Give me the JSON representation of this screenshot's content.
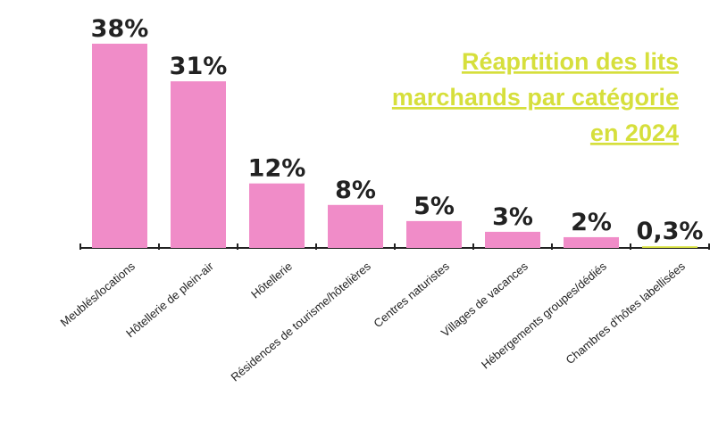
{
  "chart_data": {
    "type": "bar",
    "title": [
      "Réaprtition des lits",
      "marchands par catégorie",
      "en 2024"
    ],
    "categories": [
      "Meublés/locations",
      "Hôtellerie de plein-air",
      "Hôtellerie",
      "Résidences de tourisme/hôtelières",
      "Centres naturistes",
      "Villages de vacances",
      "Hébergements groupes/dédiés",
      "Chambres d'hôtes labellisées"
    ],
    "values": [
      38,
      31,
      12,
      8,
      5,
      3,
      2,
      0.3
    ],
    "value_labels": [
      "38%",
      "31%",
      "12%",
      "8%",
      "5%",
      "3%",
      "2%",
      "0,3%"
    ],
    "colors": [
      "#f08cc8",
      "#f08cc8",
      "#f08cc8",
      "#f08cc8",
      "#f08cc8",
      "#f08cc8",
      "#f08cc8",
      "#d6df3c"
    ],
    "title_color": "#d6df3c",
    "ylim": [
      0,
      38
    ]
  }
}
